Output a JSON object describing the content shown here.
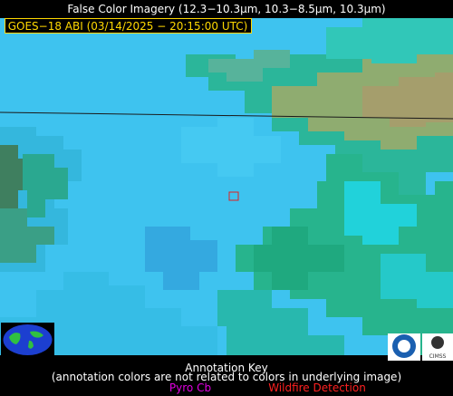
{
  "header": {
    "title": "False Color Imagery (12.3−10.3µm, 10.3−8.5µm, 10.3µm)",
    "satellite_label": "GOES−18 ABI (03/14/2025 − 20:15:00 UTC)"
  },
  "footer": {
    "heading": "Annotation Key",
    "note": "(annotation colors are not related to colors in underlying image)",
    "legend": [
      {
        "label": "Pyro Cb",
        "color": "#e000e0"
      },
      {
        "label": "Wildfire Detection",
        "color": "#ff2020"
      }
    ]
  },
  "logos": {
    "right_caption": "CIMSS"
  }
}
